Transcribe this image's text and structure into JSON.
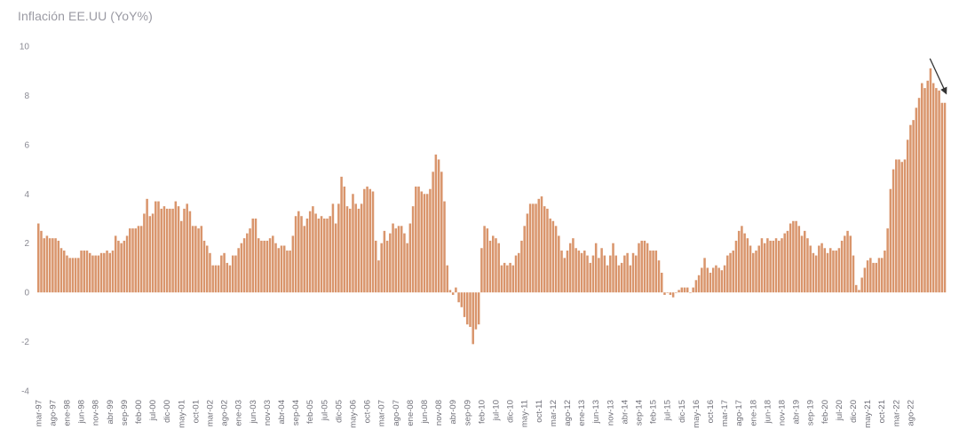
{
  "chart_data": {
    "type": "bar",
    "title": "Inflación EE.UU (YoY%)",
    "xlabel": "",
    "ylabel": "",
    "ylim": [
      -4,
      10
    ],
    "y_ticks": [
      "10",
      "8",
      "6",
      "4",
      "2",
      "0",
      "-2",
      "-4"
    ],
    "grid": false,
    "bar_color": "#d9956c",
    "arrow_color": "#333333",
    "annotation": "arrow pointing down at latest value",
    "start_month": "mar-97",
    "x_tick_labels": [
      "mar-97",
      "ago-97",
      "ene-98",
      "jun-98",
      "nov-98",
      "abr-99",
      "sep-99",
      "feb-00",
      "jul-00",
      "dic-00",
      "may-01",
      "oct-01",
      "mar-02",
      "ago-02",
      "ene-03",
      "jun-03",
      "nov-03",
      "abr-04",
      "sep-04",
      "feb-05",
      "jul-05",
      "dic-05",
      "may-06",
      "oct-06",
      "mar-07",
      "ago-07",
      "ene-08",
      "jun-08",
      "nov-08",
      "abr-09",
      "sep-09",
      "feb-10",
      "jul-10",
      "dic-10",
      "may-11",
      "oct-11",
      "mar-12",
      "ago-12",
      "ene-13",
      "jun-13",
      "nov-13",
      "abr-14",
      "sep-14",
      "feb-15",
      "jul-15",
      "dic-15",
      "may-16",
      "oct-16",
      "mar-17",
      "ago-17",
      "ene-18",
      "jun-18",
      "nov-18",
      "abr-19",
      "sep-19",
      "feb-20",
      "jul-20",
      "dic-20",
      "may-21",
      "oct-21",
      "mar-22",
      "ago-22"
    ],
    "series": [
      {
        "values": [
          2.8,
          2.5,
          2.2,
          2.3,
          2.2,
          2.2,
          2.2,
          2.1,
          1.8,
          1.7,
          1.5,
          1.4,
          1.4,
          1.4,
          1.4,
          1.7,
          1.7,
          1.7,
          1.6,
          1.5,
          1.5,
          1.5,
          1.6,
          1.6,
          1.7,
          1.6,
          1.7,
          2.3,
          2.1,
          2.0,
          2.1,
          2.3,
          2.6,
          2.6,
          2.6,
          2.7,
          2.7,
          3.2,
          3.8,
          3.1,
          3.2,
          3.7,
          3.7,
          3.4,
          3.5,
          3.4,
          3.4,
          3.4,
          3.7,
          3.5,
          2.9,
          3.4,
          3.6,
          3.3,
          2.7,
          2.7,
          2.6,
          2.7,
          2.1,
          1.9,
          1.6,
          1.1,
          1.1,
          1.1,
          1.5,
          1.6,
          1.2,
          1.1,
          1.5,
          1.5,
          1.8,
          2.0,
          2.2,
          2.4,
          2.6,
          3.0,
          3.0,
          2.2,
          2.1,
          2.1,
          2.1,
          2.2,
          2.3,
          2.0,
          1.8,
          1.9,
          1.9,
          1.7,
          1.7,
          2.3,
          3.1,
          3.3,
          3.1,
          2.7,
          3.0,
          3.3,
          3.5,
          3.2,
          3.0,
          3.1,
          3.0,
          3.0,
          3.1,
          3.6,
          2.8,
          3.6,
          4.7,
          4.3,
          3.5,
          3.4,
          4.0,
          3.6,
          3.4,
          3.6,
          4.2,
          4.3,
          4.2,
          4.1,
          2.1,
          1.3,
          2.0,
          2.5,
          2.1,
          2.4,
          2.8,
          2.6,
          2.7,
          2.7,
          2.4,
          2.0,
          2.8,
          3.5,
          4.3,
          4.3,
          4.1,
          4.0,
          4.0,
          4.2,
          4.9,
          5.6,
          5.4,
          4.9,
          3.7,
          1.1,
          0.1,
          -0.1,
          0.2,
          -0.4,
          -0.6,
          -1.0,
          -1.3,
          -1.4,
          -2.1,
          -1.5,
          -1.3,
          1.8,
          2.7,
          2.6,
          2.1,
          2.3,
          2.2,
          2.0,
          1.1,
          1.2,
          1.1,
          1.2,
          1.1,
          1.5,
          1.6,
          2.1,
          2.7,
          3.2,
          3.6,
          3.6,
          3.6,
          3.8,
          3.9,
          3.5,
          3.4,
          3.0,
          2.9,
          2.7,
          2.3,
          1.7,
          1.4,
          1.7,
          2.0,
          2.2,
          1.8,
          1.7,
          1.6,
          1.7,
          1.5,
          1.2,
          1.5,
          2.0,
          1.4,
          1.8,
          1.5,
          1.1,
          1.5,
          2.0,
          1.5,
          1.1,
          1.2,
          1.5,
          1.6,
          1.1,
          1.6,
          1.5,
          2.0,
          2.1,
          2.1,
          2.0,
          1.7,
          1.7,
          1.7,
          1.3,
          0.8,
          -0.1,
          0.0,
          -0.1,
          -0.2,
          0.0,
          0.1,
          0.2,
          0.2,
          0.2,
          0.0,
          0.2,
          0.5,
          0.7,
          1.0,
          1.4,
          1.0,
          0.8,
          1.0,
          1.1,
          1.0,
          0.9,
          1.1,
          1.5,
          1.6,
          1.7,
          2.1,
          2.5,
          2.7,
          2.4,
          2.2,
          1.9,
          1.6,
          1.7,
          1.9,
          2.2,
          2.0,
          2.2,
          2.1,
          2.1,
          2.2,
          2.1,
          2.2,
          2.4,
          2.5,
          2.8,
          2.9,
          2.9,
          2.7,
          2.3,
          2.5,
          2.2,
          1.9,
          1.6,
          1.5,
          1.9,
          2.0,
          1.8,
          1.6,
          1.8,
          1.7,
          1.7,
          1.8,
          2.1,
          2.3,
          2.5,
          2.3,
          1.5,
          0.3,
          0.1,
          0.6,
          1.0,
          1.3,
          1.4,
          1.2,
          1.2,
          1.4,
          1.4,
          1.7,
          2.6,
          4.2,
          5.0,
          5.4,
          5.4,
          5.3,
          5.4,
          6.2,
          6.8,
          7.0,
          7.5,
          7.9,
          8.5,
          8.3,
          8.6,
          9.1,
          8.5,
          8.3,
          8.2,
          7.7,
          7.7
        ]
      }
    ]
  }
}
